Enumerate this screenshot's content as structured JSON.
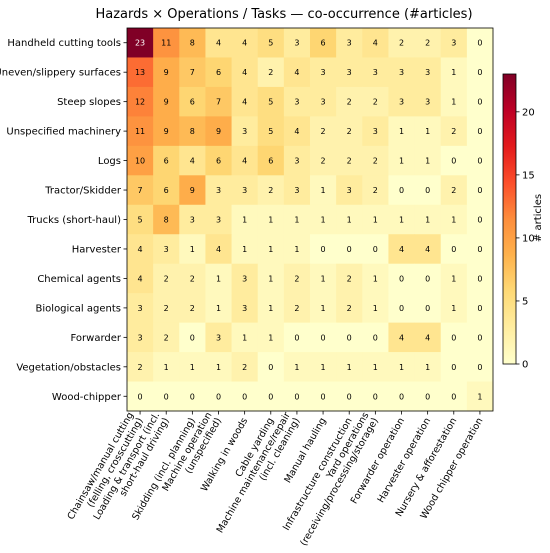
{
  "chart_data": {
    "type": "heatmap",
    "title": "Hazards × Operations / Tasks — co-occurrence (#articles)",
    "rows": [
      "Handheld cutting tools",
      "Uneven/slippery surfaces",
      "Steep slopes",
      "Unspecified machinery",
      "Logs",
      "Tractor/Skidder",
      "Trucks (short-haul)",
      "Harvester",
      "Chemical agents",
      "Biological agents",
      "Forwarder",
      "Vegetation/obstacles",
      "Wood-chipper"
    ],
    "columns": [
      [
        "Chainsaw/manual cutting",
        "(felling, crosscutting)"
      ],
      [
        "Loading & transport (incl.",
        "short-haul driving)"
      ],
      [
        "Skidding (incl. planning)"
      ],
      [
        "Machine operation",
        "(unspecified)"
      ],
      [
        "Walking in woods"
      ],
      [
        "Cable yarding"
      ],
      [
        "Machine maintenance/repair",
        "(incl. cleaning)"
      ],
      [
        "Manual hauling"
      ],
      [
        "Infrastructure construction"
      ],
      [
        "Yard operations",
        "(receiving/processing/storage)"
      ],
      [
        "Forwarder operation"
      ],
      [
        "Harvester operation"
      ],
      [
        "Nursery & afforestation"
      ],
      [
        "Wood chipper operation"
      ]
    ],
    "values": [
      [
        23,
        11,
        8,
        4,
        4,
        5,
        3,
        6,
        3,
        4,
        2,
        2,
        3,
        0
      ],
      [
        13,
        9,
        7,
        6,
        4,
        2,
        4,
        3,
        3,
        3,
        3,
        3,
        1,
        0
      ],
      [
        12,
        9,
        6,
        7,
        4,
        5,
        3,
        3,
        2,
        2,
        3,
        3,
        1,
        0
      ],
      [
        11,
        9,
        8,
        9,
        3,
        5,
        4,
        2,
        2,
        3,
        1,
        1,
        2,
        0
      ],
      [
        10,
        6,
        4,
        6,
        4,
        6,
        3,
        2,
        2,
        2,
        1,
        1,
        0,
        0
      ],
      [
        7,
        6,
        9,
        3,
        3,
        2,
        3,
        1,
        3,
        2,
        0,
        0,
        2,
        0
      ],
      [
        5,
        8,
        3,
        3,
        1,
        1,
        1,
        1,
        1,
        1,
        1,
        1,
        1,
        0
      ],
      [
        4,
        3,
        1,
        4,
        1,
        1,
        1,
        0,
        0,
        0,
        4,
        4,
        0,
        0
      ],
      [
        4,
        2,
        2,
        1,
        3,
        1,
        2,
        1,
        2,
        1,
        0,
        0,
        1,
        0
      ],
      [
        3,
        2,
        2,
        1,
        3,
        1,
        2,
        1,
        2,
        1,
        0,
        0,
        1,
        0
      ],
      [
        3,
        2,
        0,
        3,
        1,
        1,
        0,
        0,
        0,
        0,
        4,
        4,
        0,
        0
      ],
      [
        2,
        1,
        1,
        1,
        2,
        0,
        1,
        1,
        1,
        1,
        1,
        1,
        0,
        0
      ],
      [
        0,
        0,
        0,
        0,
        0,
        0,
        0,
        0,
        0,
        0,
        0,
        0,
        0,
        1
      ]
    ],
    "colorbar": {
      "label": "# articles",
      "ticks": [
        0,
        5,
        10,
        15,
        20
      ],
      "range": [
        0,
        23
      ],
      "colormap": "YlOrRd",
      "colors": [
        "#ffffcc",
        "#ffeda0",
        "#fed976",
        "#feb24c",
        "#fd8d3c",
        "#fc4e2a",
        "#e31a1c",
        "#bd0026",
        "#800026"
      ]
    }
  }
}
